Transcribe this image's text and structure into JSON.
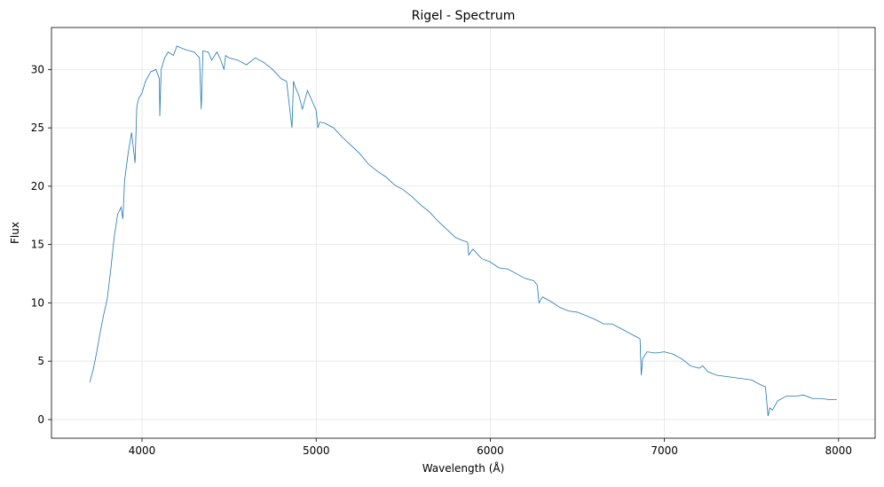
{
  "chart_data": {
    "type": "line",
    "title": "Rigel - Spectrum",
    "xlabel": "Wavelength (Å)",
    "ylabel": "Flux",
    "xlim": [
      3480,
      8210
    ],
    "ylim": [
      -1.6,
      33.6
    ],
    "xticks": [
      4000,
      5000,
      6000,
      7000,
      8000
    ],
    "yticks": [
      0,
      5,
      10,
      15,
      20,
      25,
      30
    ],
    "grid": true,
    "colors": {
      "line": "#1f77b4",
      "grid": "#e5e5e5",
      "axis": "#000000"
    },
    "series": [
      {
        "x": [
          3700,
          3720,
          3740,
          3760,
          3780,
          3800,
          3820,
          3840,
          3860,
          3880,
          3890,
          3900,
          3920,
          3940,
          3960,
          3970,
          3980,
          4000,
          4020,
          4050,
          4080,
          4100,
          4102,
          4110,
          4130,
          4150,
          4180,
          4200,
          4250,
          4300,
          4330,
          4340,
          4350,
          4380,
          4400,
          4430,
          4450,
          4471,
          4480,
          4500,
          4550,
          4600,
          4650,
          4700,
          4750,
          4800,
          4830,
          4861,
          4870,
          4880,
          4900,
          4921,
          4950,
          5000,
          5010,
          5020,
          5050,
          5100,
          5150,
          5200,
          5250,
          5300,
          5350,
          5400,
          5450,
          5500,
          5550,
          5600,
          5650,
          5700,
          5750,
          5800,
          5850,
          5870,
          5876,
          5900,
          5950,
          6000,
          6050,
          6100,
          6150,
          6200,
          6250,
          6270,
          6280,
          6300,
          6350,
          6400,
          6450,
          6500,
          6550,
          6600,
          6650,
          6700,
          6750,
          6800,
          6850,
          6860,
          6867,
          6875,
          6900,
          6950,
          7000,
          7050,
          7100,
          7150,
          7200,
          7220,
          7250,
          7300,
          7400,
          7500,
          7550,
          7580,
          7595,
          7605,
          7620,
          7650,
          7700,
          7750,
          7800,
          7850,
          7900,
          7950,
          7990
        ],
        "values": [
          3.2,
          4.3,
          5.8,
          7.5,
          9.0,
          10.3,
          12.8,
          15.6,
          17.6,
          18.2,
          17.2,
          20.5,
          22.8,
          24.6,
          22.0,
          26.8,
          27.5,
          28.0,
          29.0,
          29.8,
          30.0,
          29.2,
          26.0,
          30.0,
          31.0,
          31.5,
          31.2,
          32.0,
          31.7,
          31.5,
          31.0,
          26.6,
          31.6,
          31.5,
          30.8,
          31.5,
          30.9,
          30.0,
          31.2,
          31.0,
          30.8,
          30.4,
          31.0,
          30.6,
          30.0,
          29.2,
          29.0,
          25.0,
          29.0,
          28.5,
          27.8,
          26.6,
          28.2,
          26.5,
          25.0,
          25.5,
          25.4,
          25.0,
          24.2,
          23.5,
          22.8,
          21.9,
          21.3,
          20.8,
          20.1,
          19.7,
          19.1,
          18.4,
          17.8,
          17.0,
          16.3,
          15.6,
          15.3,
          15.2,
          14.1,
          14.6,
          13.8,
          13.5,
          13.0,
          12.9,
          12.5,
          12.1,
          11.9,
          11.5,
          10.0,
          10.5,
          10.1,
          9.6,
          9.3,
          9.2,
          8.9,
          8.6,
          8.2,
          8.2,
          7.8,
          7.4,
          7.0,
          6.9,
          3.8,
          5.2,
          5.8,
          5.7,
          5.8,
          5.6,
          5.2,
          4.6,
          4.4,
          4.6,
          4.1,
          3.8,
          3.6,
          3.4,
          3.0,
          2.8,
          0.3,
          1.0,
          0.8,
          1.6,
          2.0,
          2.0,
          2.1,
          1.8,
          1.8,
          1.7,
          1.7
        ]
      }
    ]
  }
}
